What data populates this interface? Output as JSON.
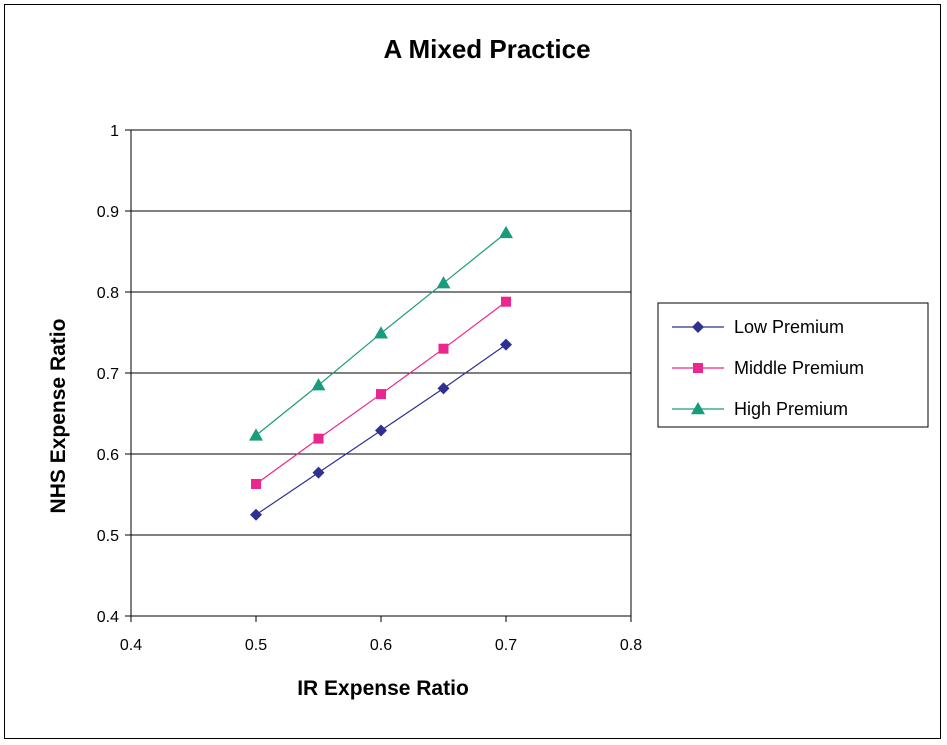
{
  "chart_data": {
    "type": "line",
    "title": "A Mixed Practice",
    "xlabel": "IR Expense Ratio",
    "ylabel": "NHS Expense Ratio",
    "xlim": [
      0.4,
      0.8
    ],
    "ylim": [
      0.4,
      1.0
    ],
    "x_ticks": [
      "0.4",
      "0.5",
      "0.6",
      "0.7",
      "0.8"
    ],
    "y_ticks": [
      "0.4",
      "0.5",
      "0.6",
      "0.7",
      "0.8",
      "0.9",
      "1"
    ],
    "grid": "horizontal",
    "legend_position": "right",
    "series": [
      {
        "name": "Low Premium",
        "color": "#2e3192",
        "marker": "diamond",
        "x": [
          0.5,
          0.55,
          0.6,
          0.65,
          0.7
        ],
        "y": [
          0.525,
          0.577,
          0.629,
          0.681,
          0.735
        ]
      },
      {
        "name": "Middle Premium",
        "color": "#ec268f",
        "marker": "square",
        "x": [
          0.5,
          0.55,
          0.6,
          0.65,
          0.7
        ],
        "y": [
          0.563,
          0.619,
          0.674,
          0.73,
          0.788
        ]
      },
      {
        "name": "High Premium",
        "color": "#1a9c7c",
        "marker": "triangle",
        "x": [
          0.5,
          0.55,
          0.6,
          0.65,
          0.7
        ],
        "y": [
          0.623,
          0.685,
          0.749,
          0.811,
          0.873
        ]
      }
    ]
  }
}
